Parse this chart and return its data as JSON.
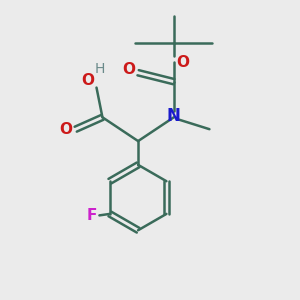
{
  "bg_color": "#ebebeb",
  "bond_color": "#3a6b5a",
  "bond_width": 1.8,
  "N_color": "#1a1acc",
  "O_color": "#cc1a1a",
  "F_color": "#cc22cc",
  "H_color": "#6a8a8a",
  "font_size": 11,
  "small_font_size": 10,
  "xlim": [
    0,
    10
  ],
  "ylim": [
    0,
    10
  ]
}
